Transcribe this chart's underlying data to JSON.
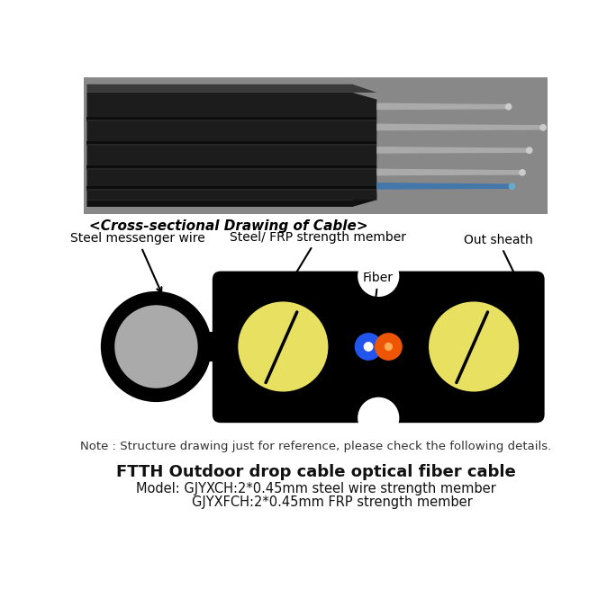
{
  "background_color": "#ffffff",
  "cross_section_label": "<Cross-sectional Drawing of Cable>",
  "note_text": "Note : Structure drawing just for reference, please check the following details.",
  "bold_title": "FTTH Outdoor drop cable optical fiber cable",
  "model_line1": "Model: GJYXCH:2*0.45mm steel wire strength member",
  "model_line2": "        GJYXFCH:2*0.45mm FRP strength member",
  "labels": {
    "steel_messenger": "Steel messenger wire",
    "strength_member": "Steel/ FRP strength member",
    "fiber": "Fiber",
    "out_sheath": "Out sheath"
  },
  "cable_black": "#000000",
  "messenger_gray": "#aaaaaa",
  "strength_yellow": "#e8e060",
  "fiber_blue": "#2255ee",
  "fiber_orange": "#ee5500",
  "white": "#ffffff",
  "photo_bg": "#555555",
  "photo_cable_dark": "#1a1a1a",
  "photo_cable_mid": "#2d2d2d",
  "photo_cable_light": "#3d3d3d",
  "photo_wire_color": "#b0b0b0",
  "photo_blue_fiber": "#4488bb"
}
